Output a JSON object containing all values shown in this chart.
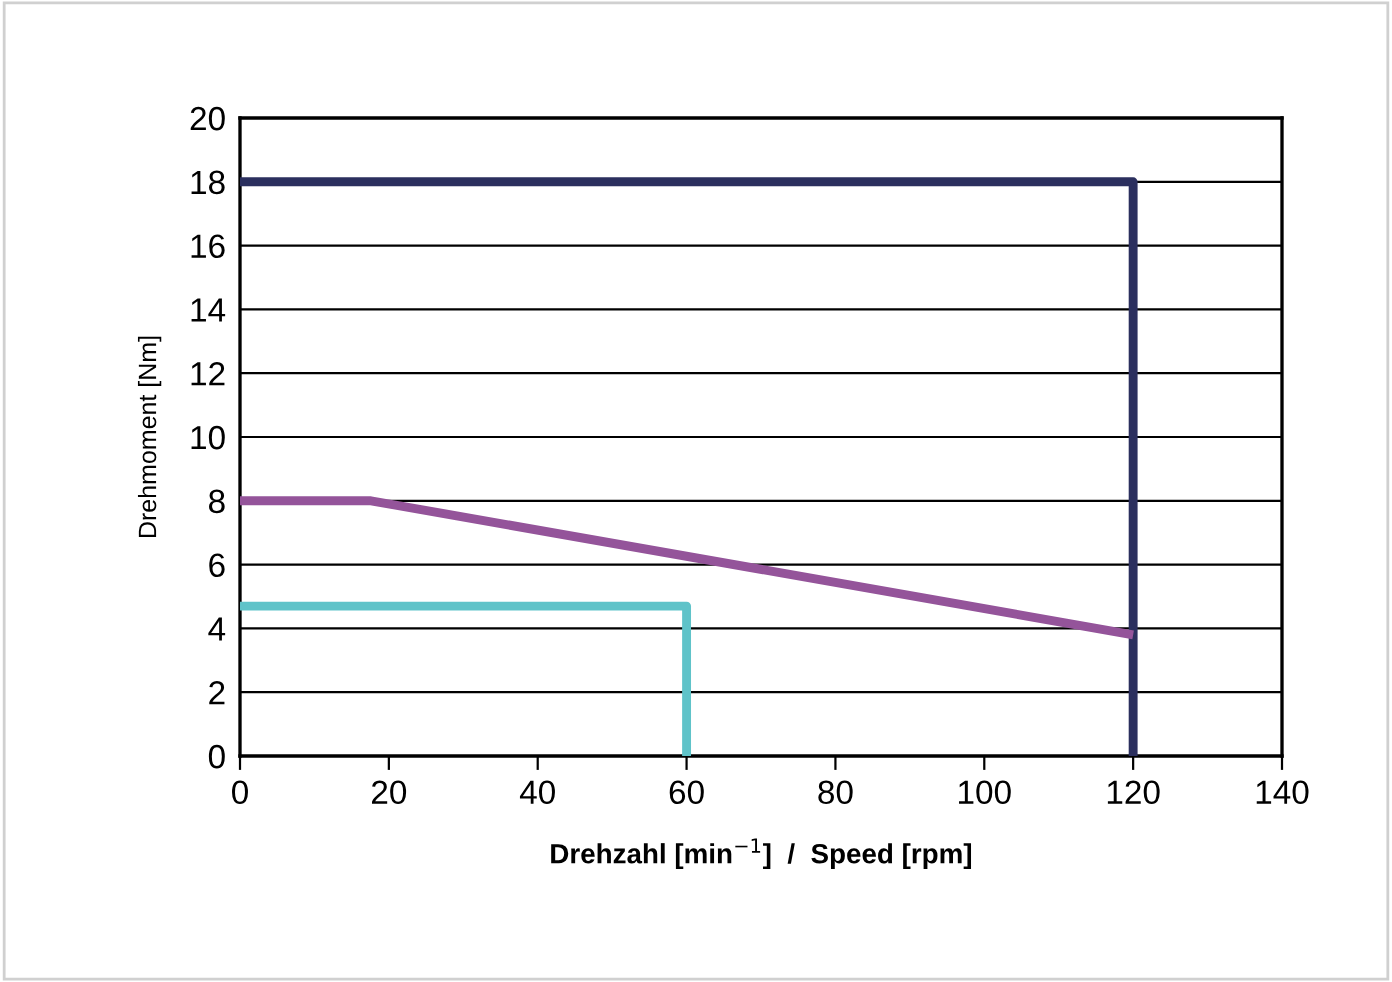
{
  "chart_data": {
    "type": "line",
    "xlabel": "Drehzahl [min$^{−1}$]  /  Speed [rpm]",
    "ylabel": "Drehmoment [Nm]",
    "series": [
      {
        "color": "#2b2f5e",
        "x": [
          0,
          120,
          120
        ],
        "values": [
          18,
          18,
          0
        ]
      },
      {
        "color": "#94549a",
        "x": [
          0,
          17.6,
          120
        ],
        "values": [
          8,
          8,
          3.8
        ]
      },
      {
        "color": "#5fc3c9",
        "x": [
          0,
          60,
          60
        ],
        "values": [
          4.7,
          4.7,
          0
        ]
      }
    ],
    "xlim": [
      0,
      140
    ],
    "xticks": [
      0,
      20,
      40,
      60,
      80,
      100,
      120,
      140
    ],
    "ylim": [
      0,
      20
    ],
    "yticks": [
      0,
      2,
      4,
      6,
      8,
      10,
      12,
      14,
      16,
      18,
      20
    ],
    "grid": "y",
    "marker": "none",
    "line_style": "solid"
  }
}
